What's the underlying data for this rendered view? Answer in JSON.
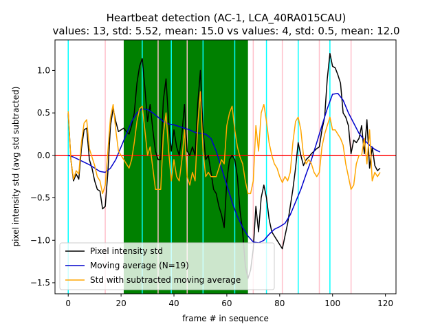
{
  "chart_data": {
    "type": "line",
    "title": "Heartbeat detection (AC-1, LCA_40RA015CAU)",
    "subtitle": "values: 13, std: 5.52, mean: 15.0 vs values: 4, std: 0.5, mean: 12.0",
    "xlabel": "frame # in sequence",
    "ylabel": "pixel intensity std (avg std subtracted)",
    "xlim": [
      -5,
      124
    ],
    "ylim": [
      -1.63,
      1.36
    ],
    "xticks": [
      0,
      20,
      40,
      60,
      80,
      100,
      120
    ],
    "yticks": [
      -1.5,
      -1.0,
      -0.5,
      0.0,
      0.5,
      1.0
    ],
    "xtick_labels": [
      "0",
      "20",
      "40",
      "60",
      "80",
      "100",
      "120"
    ],
    "ytick_labels": [
      "−1.5",
      "−1.0",
      "−0.5",
      "0.0",
      "0.5",
      "1.0"
    ],
    "grid": false,
    "legend_position": "lower-left",
    "highlight_span": {
      "x0": 21,
      "x1": 68,
      "color": "#008000"
    },
    "zero_line": {
      "y": 0,
      "color": "#ff0000"
    },
    "cyan_lines": [
      0,
      28,
      39,
      51,
      63,
      75,
      87,
      99
    ],
    "pink_lines": [
      14,
      34,
      45,
      70,
      81,
      95,
      107
    ],
    "series": [
      {
        "name": "Pixel intensity std",
        "color": "#000000",
        "x": [
          0,
          1,
          2,
          3,
          4,
          5,
          6,
          7,
          8,
          9,
          10,
          11,
          12,
          13,
          14,
          15,
          16,
          17,
          18,
          19,
          20,
          21,
          22,
          23,
          24,
          25,
          26,
          27,
          28,
          29,
          30,
          31,
          32,
          33,
          34,
          35,
          36,
          37,
          38,
          39,
          40,
          41,
          42,
          43,
          44,
          45,
          46,
          47,
          48,
          49,
          50,
          51,
          52,
          53,
          54,
          55,
          56,
          57,
          58,
          59,
          60,
          61,
          62,
          63,
          64,
          65,
          66,
          67,
          68,
          69,
          70,
          71,
          72,
          73,
          74,
          75,
          76,
          77,
          78,
          79,
          80,
          81,
          82,
          83,
          84,
          85,
          86,
          87,
          88,
          89,
          90,
          91,
          92,
          93,
          94,
          95,
          96,
          97,
          98,
          99,
          100,
          101,
          102,
          103,
          104,
          105,
          106,
          107,
          108,
          109,
          110,
          111,
          112,
          113,
          114,
          115,
          116,
          117,
          118
        ],
        "y": [
          0.5,
          -0.05,
          -0.3,
          -0.22,
          -0.28,
          0.08,
          0.3,
          0.32,
          -0.05,
          -0.15,
          -0.3,
          -0.4,
          -0.42,
          -0.63,
          -0.6,
          -0.2,
          0.35,
          0.55,
          0.4,
          0.28,
          0.3,
          0.32,
          0.28,
          0.25,
          0.35,
          0.5,
          0.85,
          1.05,
          1.14,
          0.8,
          0.4,
          0.6,
          0.3,
          0.05,
          -0.05,
          -0.05,
          0.65,
          0.9,
          0.4,
          0.05,
          0.3,
          0.1,
          0.0,
          0.25,
          0.6,
          0.05,
          0.0,
          0.1,
          0.0,
          0.6,
          1.0,
          0.3,
          -0.05,
          0.0,
          -0.2,
          -0.4,
          -0.45,
          -0.6,
          -0.7,
          -0.85,
          -0.3,
          -0.05,
          0.0,
          -0.05,
          -0.25,
          -0.65,
          -0.9,
          -1.3,
          -1.45,
          -1.35,
          -1.1,
          -0.6,
          -0.9,
          -0.5,
          -0.35,
          -0.5,
          -0.75,
          -0.9,
          -0.95,
          -1.0,
          -1.05,
          -1.1,
          -0.95,
          -0.8,
          -0.6,
          -0.4,
          -0.15,
          0.15,
          0.0,
          -0.12,
          -0.05,
          -0.02,
          0.02,
          0.05,
          0.08,
          0.1,
          0.3,
          0.45,
          0.9,
          1.2,
          1.05,
          1.03,
          0.95,
          0.85,
          0.5,
          0.45,
          0.35,
          0.02,
          0.18,
          0.15,
          0.2,
          0.35,
          0.02,
          0.42,
          -0.15,
          0.1,
          -0.12,
          -0.18,
          -0.15
        ]
      },
      {
        "name": "Moving average (N=19)",
        "color": "#0000cc",
        "x": [
          0,
          2,
          4,
          6,
          8,
          10,
          12,
          14,
          16,
          18,
          20,
          22,
          24,
          26,
          28,
          30,
          32,
          34,
          36,
          38,
          40,
          42,
          44,
          46,
          48,
          50,
          52,
          54,
          56,
          58,
          60,
          62,
          64,
          66,
          68,
          70,
          72,
          74,
          76,
          78,
          80,
          82,
          84,
          86,
          88,
          90,
          92,
          94,
          96,
          98,
          100,
          102,
          104,
          106,
          108,
          110,
          112,
          114,
          116,
          118
        ],
        "y": [
          0.0,
          -0.02,
          -0.05,
          -0.08,
          -0.11,
          -0.15,
          -0.19,
          -0.2,
          -0.15,
          -0.05,
          0.1,
          0.25,
          0.4,
          0.5,
          0.55,
          0.54,
          0.5,
          0.45,
          0.4,
          0.37,
          0.36,
          0.34,
          0.32,
          0.3,
          0.27,
          0.26,
          0.25,
          0.2,
          0.05,
          -0.15,
          -0.35,
          -0.55,
          -0.72,
          -0.85,
          -0.95,
          -1.02,
          -1.03,
          -1.0,
          -0.93,
          -0.87,
          -0.84,
          -0.8,
          -0.7,
          -0.55,
          -0.4,
          -0.22,
          -0.05,
          0.15,
          0.35,
          0.55,
          0.72,
          0.73,
          0.65,
          0.5,
          0.38,
          0.26,
          0.18,
          0.12,
          0.07,
          0.04
        ]
      },
      {
        "name": "Std with subtracted moving average",
        "color": "#ffa500",
        "x": [
          0,
          1,
          2,
          3,
          4,
          5,
          6,
          7,
          8,
          9,
          10,
          11,
          12,
          13,
          14,
          15,
          16,
          17,
          18,
          19,
          20,
          21,
          22,
          23,
          24,
          25,
          26,
          27,
          28,
          29,
          30,
          31,
          32,
          33,
          34,
          35,
          36,
          37,
          38,
          39,
          40,
          41,
          42,
          43,
          44,
          45,
          46,
          47,
          48,
          49,
          50,
          51,
          52,
          53,
          54,
          55,
          56,
          57,
          58,
          59,
          60,
          61,
          62,
          63,
          64,
          65,
          66,
          67,
          68,
          69,
          70,
          71,
          72,
          73,
          74,
          75,
          76,
          77,
          78,
          79,
          80,
          81,
          82,
          83,
          84,
          85,
          86,
          87,
          88,
          89,
          90,
          91,
          92,
          93,
          94,
          95,
          96,
          97,
          98,
          99,
          100,
          101,
          102,
          103,
          104,
          105,
          106,
          107,
          108,
          109,
          110,
          111,
          112,
          113,
          114,
          115,
          116,
          117,
          118
        ],
        "y": [
          0.52,
          -0.05,
          -0.28,
          -0.18,
          -0.22,
          0.15,
          0.38,
          0.42,
          0.08,
          -0.02,
          -0.12,
          -0.25,
          -0.3,
          -0.45,
          -0.35,
          0.05,
          0.45,
          0.6,
          0.3,
          0.05,
          0.0,
          -0.05,
          -0.1,
          -0.15,
          -0.05,
          0.15,
          0.4,
          0.55,
          0.58,
          0.3,
          0.0,
          0.1,
          -0.15,
          -0.4,
          -0.4,
          -0.4,
          0.25,
          0.5,
          0.05,
          -0.3,
          -0.05,
          -0.25,
          -0.3,
          -0.05,
          0.3,
          -0.25,
          -0.35,
          -0.2,
          -0.3,
          0.35,
          0.75,
          0.05,
          -0.25,
          -0.2,
          -0.25,
          -0.25,
          -0.25,
          -0.15,
          -0.05,
          -0.1,
          0.35,
          0.5,
          0.58,
          0.3,
          0.1,
          -0.02,
          -0.1,
          -0.3,
          -0.45,
          -0.45,
          -0.3,
          0.35,
          0.05,
          0.5,
          0.6,
          0.4,
          0.15,
          0.0,
          -0.1,
          -0.15,
          -0.25,
          -0.32,
          -0.25,
          -0.3,
          -0.2,
          0.15,
          0.4,
          0.45,
          0.3,
          0.0,
          -0.1,
          -0.05,
          -0.1,
          -0.2,
          -0.25,
          -0.2,
          0.1,
          0.25,
          0.35,
          0.45,
          0.3,
          0.3,
          0.25,
          0.2,
          0.12,
          -0.1,
          -0.25,
          -0.4,
          -0.35,
          -0.1,
          0.0,
          0.0,
          0.2,
          -0.1,
          0.3,
          -0.3,
          -0.2,
          -0.25,
          -0.2
        ]
      }
    ]
  }
}
